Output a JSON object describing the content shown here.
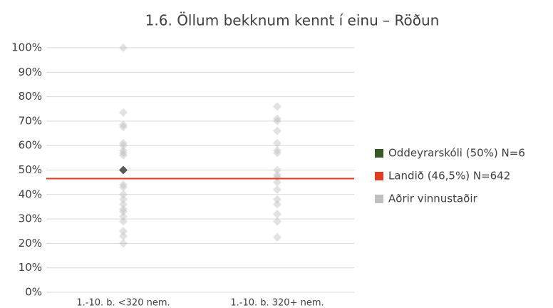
{
  "chart_data": {
    "type": "strip",
    "title": "1.6. Öllum bekknum kennt í einu – Röðun",
    "categories": [
      "1.-10. b. <320 nem.",
      "1.-10. b. 320+ nem."
    ],
    "ylim": [
      0,
      100
    ],
    "yticks": [
      {
        "value": 0,
        "label": "0%"
      },
      {
        "value": 10,
        "label": "10%"
      },
      {
        "value": 20,
        "label": "20%"
      },
      {
        "value": 30,
        "label": "30%"
      },
      {
        "value": 40,
        "label": "40%"
      },
      {
        "value": 50,
        "label": "50%"
      },
      {
        "value": 60,
        "label": "60%"
      },
      {
        "value": 70,
        "label": "70%"
      },
      {
        "value": 80,
        "label": "80%"
      },
      {
        "value": 90,
        "label": "90%"
      },
      {
        "value": 100,
        "label": "100%"
      }
    ],
    "grid": true,
    "legend": "right",
    "series": [
      {
        "name": "Oddeyrarskóli (50%) N=6",
        "color": "#375623",
        "marker_color": "#595959",
        "style": "points",
        "values": [
          [
            50
          ],
          []
        ]
      },
      {
        "name": "Landið (46,5%) N=642",
        "color": "#e03c1f",
        "style": "hline",
        "value": 46.5
      },
      {
        "name": "Aðrir vinnustaðir",
        "color": "#bfbfbf",
        "style": "points",
        "values": [
          [
            100,
            73.5,
            68.5,
            67.6,
            61,
            60,
            58,
            57,
            56,
            44,
            43,
            40,
            38,
            36,
            34,
            33,
            31,
            29,
            25,
            23,
            20
          ],
          [
            76,
            71,
            70,
            66,
            61,
            58,
            57,
            50,
            48,
            47,
            45,
            42,
            38,
            36,
            32,
            29,
            22.5
          ]
        ]
      }
    ]
  }
}
